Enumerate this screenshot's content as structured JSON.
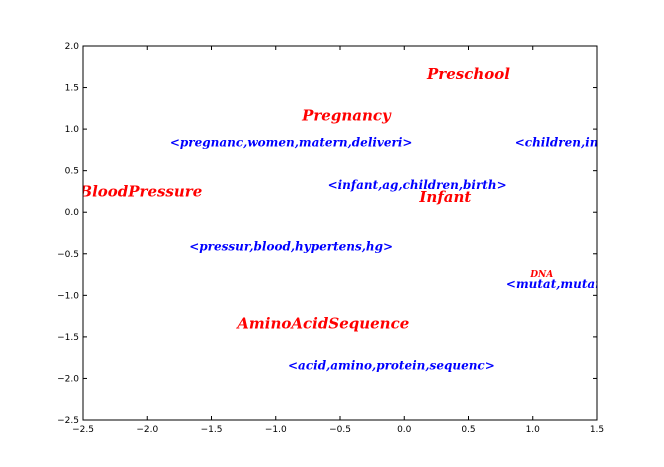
{
  "chart_data": {
    "type": "scatter",
    "title": "",
    "xlabel": "",
    "ylabel": "",
    "xlim": [
      -2.5,
      1.5
    ],
    "ylim": [
      -2.5,
      2.0
    ],
    "xticks": [
      "−2.5",
      "−2.0",
      "−1.5",
      "−1.0",
      "−0.5",
      "0.0",
      "0.5",
      "1.0",
      "1.5"
    ],
    "yticks": [
      "2.0",
      "1.5",
      "1.0",
      "0.5",
      "0.0",
      "−0.5",
      "−1.0",
      "−1.5",
      "−2.0",
      "−2.5"
    ],
    "grid": false,
    "series": [
      {
        "color": "#ff0000",
        "points": [
          {
            "x": 0.5,
            "y": 1.65,
            "label": "Preschool"
          },
          {
            "x": -0.45,
            "y": 1.15,
            "label": "Pregnancy"
          },
          {
            "x": -2.05,
            "y": 0.24,
            "label": "BloodPressure"
          },
          {
            "x": 0.32,
            "y": 0.17,
            "label": "Infant"
          },
          {
            "x": 1.07,
            "y": -0.75,
            "label": "DNA"
          },
          {
            "x": -0.63,
            "y": -1.35,
            "label": "AminoAcidSequence"
          }
        ]
      },
      {
        "color": "#0000ff",
        "points": [
          {
            "x": -0.88,
            "y": 0.83,
            "label": "<pregnanc,women,matern,deliveri>"
          },
          {
            "x": 1.33,
            "y": 0.83,
            "label": "<children,infect,c"
          },
          {
            "x": 0.1,
            "y": 0.32,
            "label": "<infant,ag,children,birth>"
          },
          {
            "x": -0.88,
            "y": -0.42,
            "label": "<pressur,blood,hypertens,hg>"
          },
          {
            "x": 1.3,
            "y": -0.87,
            "label": "<mutat,mutant,nor"
          },
          {
            "x": -0.1,
            "y": -1.85,
            "label": "<acid,amino,protein,sequenc>"
          }
        ]
      }
    ]
  }
}
